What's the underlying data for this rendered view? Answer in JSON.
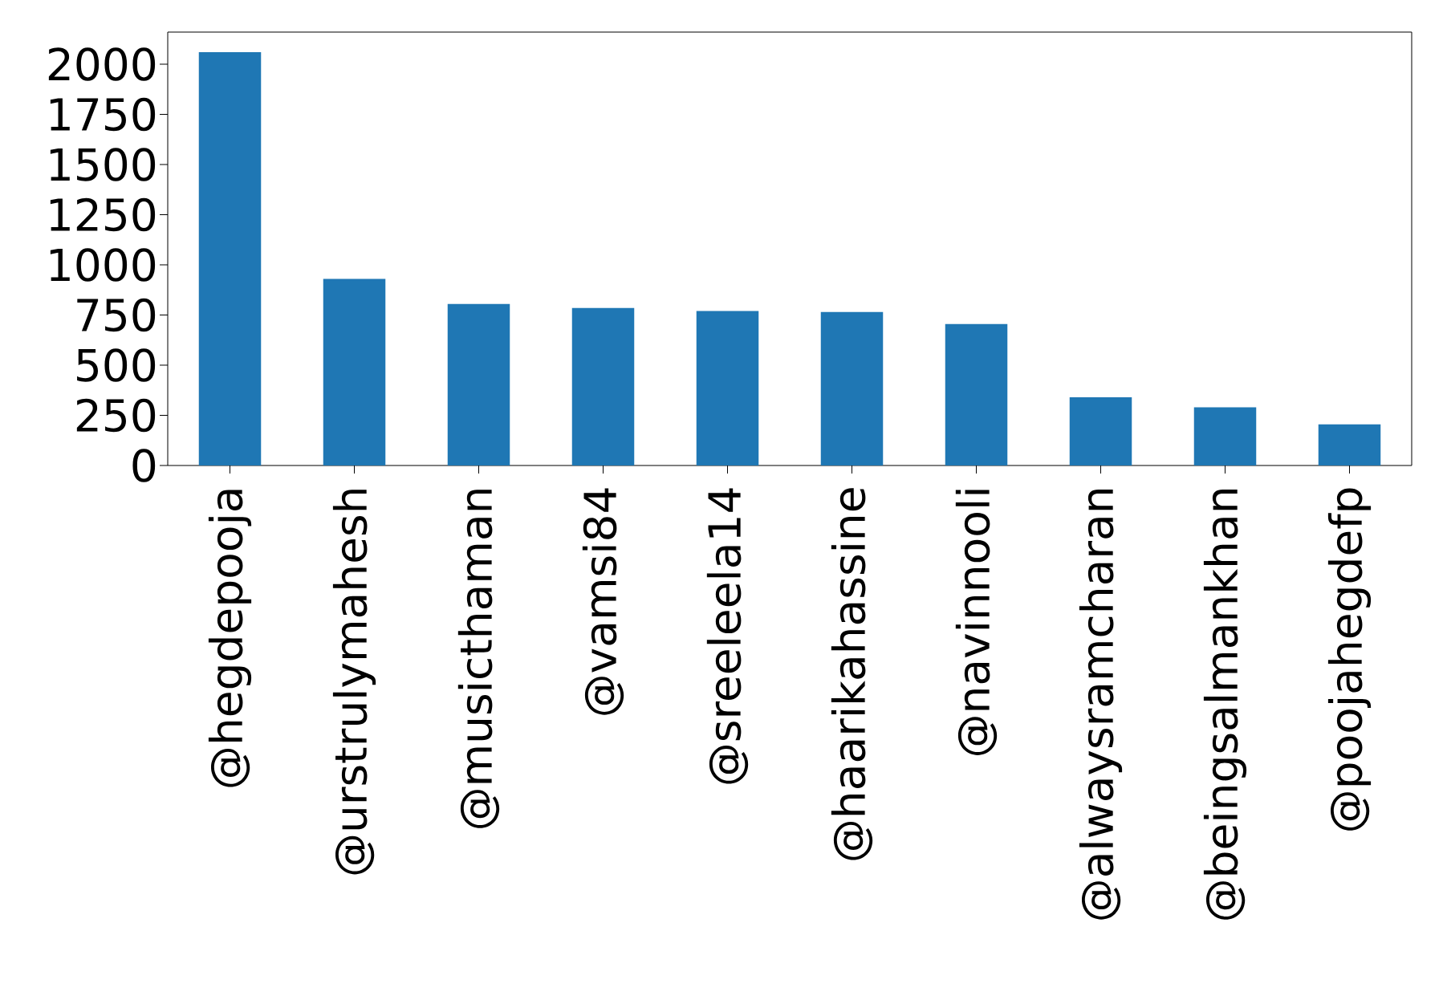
{
  "chart_data": {
    "type": "bar",
    "categories": [
      "@hegdepooja",
      "@urstrulymahesh",
      "@musicthaman",
      "@vamsi84",
      "@sreeleela14",
      "@haarikahassine",
      "@navinnooli",
      "@alwaysramcharan",
      "@beingsalmankhan",
      "@poojahegdefp"
    ],
    "values": [
      2060,
      930,
      805,
      785,
      770,
      765,
      705,
      340,
      290,
      205
    ],
    "color": "#1f77b4",
    "ylim": [
      0,
      2160
    ],
    "yticks": [
      0,
      250,
      500,
      750,
      1000,
      1250,
      1500,
      1750,
      2000
    ]
  }
}
